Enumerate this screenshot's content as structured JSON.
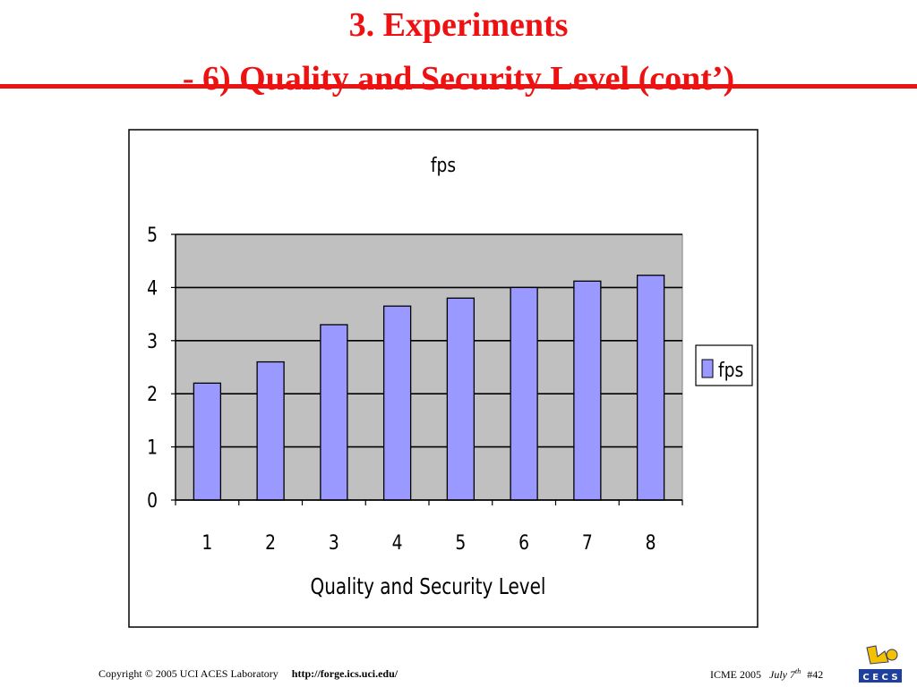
{
  "slide": {
    "title_line_1": "3. Experiments",
    "title_line_2": "- 6) Quality and Security Level (cont’)",
    "accent_color": "#ee1111"
  },
  "chart_data": {
    "type": "bar",
    "title": "fps",
    "xlabel": "Quality and Security Level",
    "ylabel": "",
    "categories": [
      "1",
      "2",
      "3",
      "4",
      "5",
      "6",
      "7",
      "8"
    ],
    "series": [
      {
        "name": "fps",
        "values": [
          2.2,
          2.6,
          3.3,
          3.65,
          3.8,
          4.0,
          4.12,
          4.23
        ]
      }
    ],
    "ylim": [
      0,
      5
    ],
    "yticks": [
      0,
      1,
      2,
      3,
      4,
      5
    ],
    "grid": true,
    "legend": "right",
    "bar_color": "#9999ff",
    "plot_background": "#c0c0c0"
  },
  "footer": {
    "copyright": "Copyright © 2005  UCI ACES Laboratory",
    "url": "http://forge.ics.uci.edu/",
    "conference": "ICME 2005",
    "date_main": "July 7",
    "date_sup": "th",
    "page": "#42",
    "logo_text": "C E C S"
  }
}
